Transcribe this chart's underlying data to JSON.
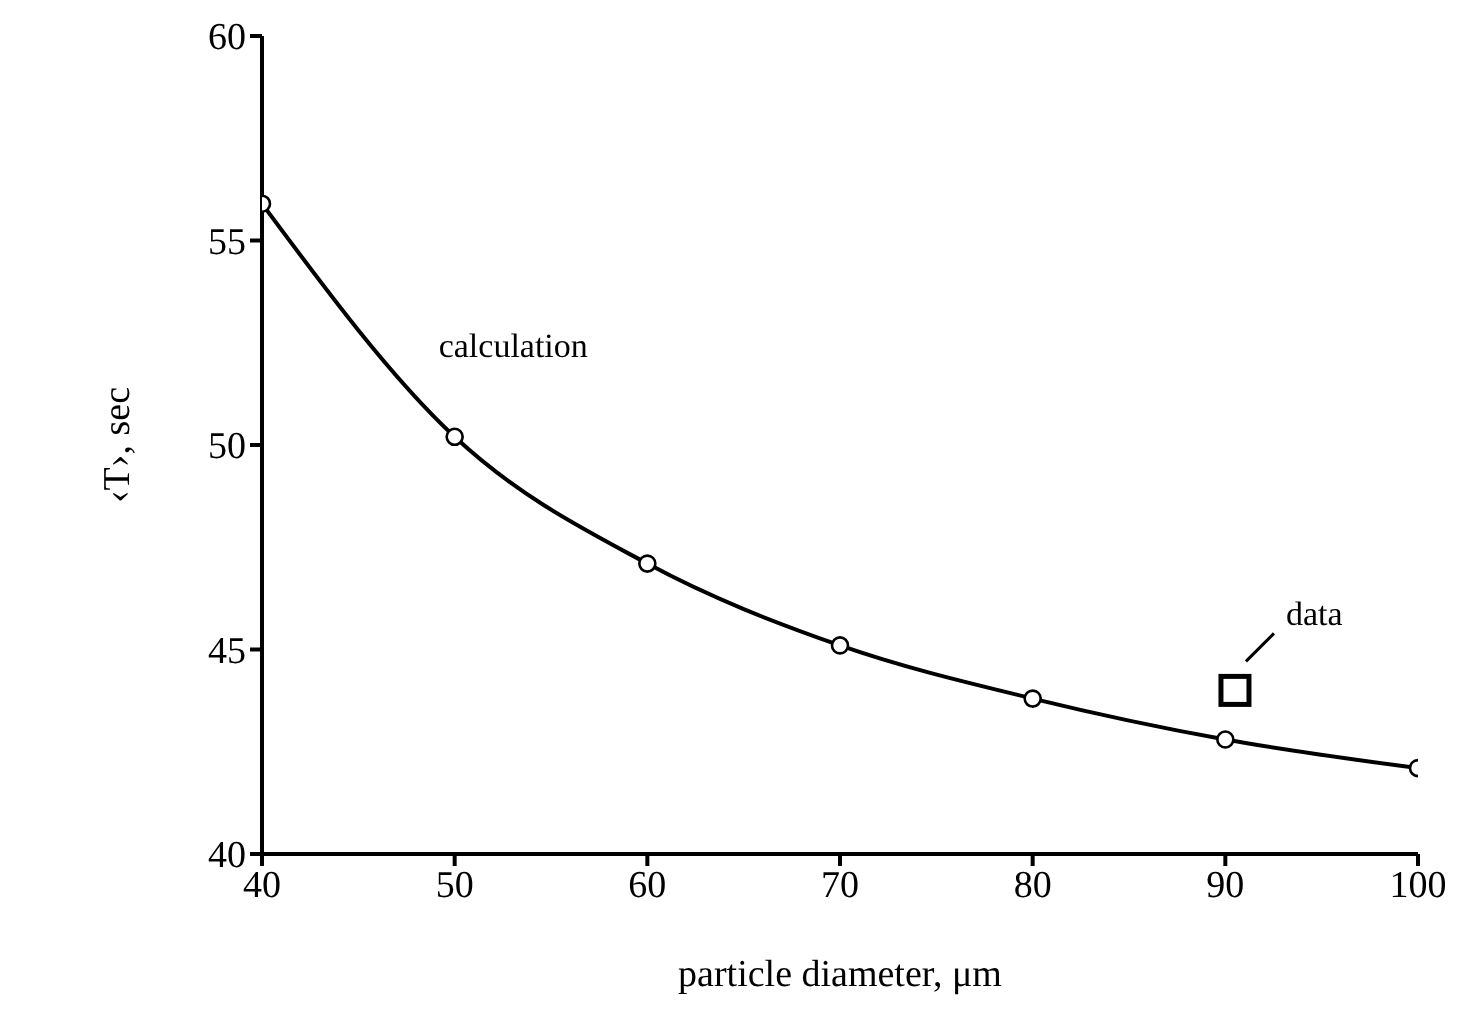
{
  "chart_data": {
    "type": "line",
    "xlabel": "particle diameter, μm",
    "ylabel": "‹T›, sec",
    "xlim": [
      40,
      100
    ],
    "xticks": [
      40,
      50,
      60,
      70,
      80,
      90,
      100
    ],
    "ylim": [
      40,
      60
    ],
    "yticks": [
      40,
      45,
      50,
      55,
      60
    ],
    "series": [
      {
        "name": "calculation",
        "color": "#000000",
        "marker": "circle",
        "line_style": "solid",
        "x": [
          40,
          50,
          60,
          70,
          80,
          90,
          100
        ],
        "values": [
          55.9,
          50.2,
          47.1,
          45.1,
          43.8,
          42.8,
          42.1
        ]
      },
      {
        "name": "data",
        "type": "scatter",
        "color": "#000000",
        "marker": "square",
        "x": [
          90.5
        ],
        "values": [
          44.0
        ]
      }
    ]
  }
}
